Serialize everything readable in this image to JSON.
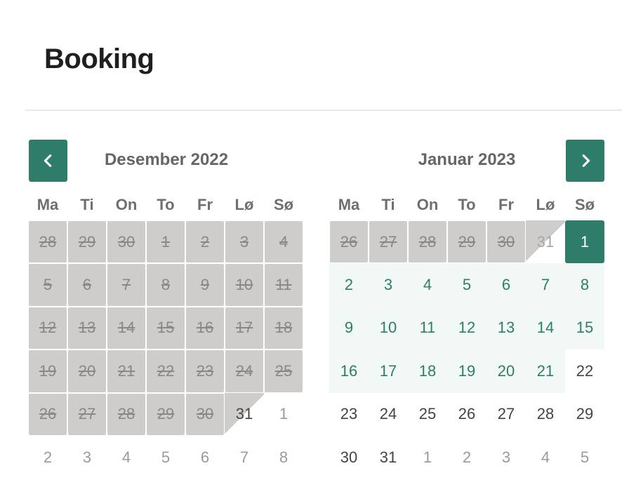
{
  "page": {
    "title": "Booking"
  },
  "nav": {
    "prev_icon": "chevron-left-icon",
    "next_icon": "chevron-right-icon"
  },
  "weekdays": [
    "Ma",
    "Ti",
    "On",
    "To",
    "Fr",
    "Lø",
    "Sø"
  ],
  "months": [
    {
      "title": "Desember 2022",
      "days": [
        {
          "d": "28",
          "s": "blocked"
        },
        {
          "d": "29",
          "s": "blocked"
        },
        {
          "d": "30",
          "s": "blocked"
        },
        {
          "d": "1",
          "s": "blocked"
        },
        {
          "d": "2",
          "s": "blocked"
        },
        {
          "d": "3",
          "s": "blocked"
        },
        {
          "d": "4",
          "s": "blocked"
        },
        {
          "d": "5",
          "s": "blocked"
        },
        {
          "d": "6",
          "s": "blocked"
        },
        {
          "d": "7",
          "s": "blocked"
        },
        {
          "d": "8",
          "s": "blocked"
        },
        {
          "d": "9",
          "s": "blocked"
        },
        {
          "d": "10",
          "s": "blocked"
        },
        {
          "d": "11",
          "s": "blocked"
        },
        {
          "d": "12",
          "s": "blocked"
        },
        {
          "d": "13",
          "s": "blocked"
        },
        {
          "d": "14",
          "s": "blocked"
        },
        {
          "d": "15",
          "s": "blocked"
        },
        {
          "d": "16",
          "s": "blocked"
        },
        {
          "d": "17",
          "s": "blocked"
        },
        {
          "d": "18",
          "s": "blocked"
        },
        {
          "d": "19",
          "s": "blocked"
        },
        {
          "d": "20",
          "s": "blocked"
        },
        {
          "d": "21",
          "s": "blocked"
        },
        {
          "d": "22",
          "s": "blocked"
        },
        {
          "d": "23",
          "s": "blocked"
        },
        {
          "d": "24",
          "s": "blocked"
        },
        {
          "d": "25",
          "s": "blocked"
        },
        {
          "d": "26",
          "s": "blocked"
        },
        {
          "d": "27",
          "s": "blocked"
        },
        {
          "d": "28",
          "s": "blocked"
        },
        {
          "d": "29",
          "s": "blocked"
        },
        {
          "d": "30",
          "s": "blocked"
        },
        {
          "d": "31",
          "s": "split"
        },
        {
          "d": "1",
          "s": "outside"
        },
        {
          "d": "2",
          "s": "outside"
        },
        {
          "d": "3",
          "s": "outside"
        },
        {
          "d": "4",
          "s": "outside"
        },
        {
          "d": "5",
          "s": "outside"
        },
        {
          "d": "6",
          "s": "outside"
        },
        {
          "d": "7",
          "s": "outside"
        },
        {
          "d": "8",
          "s": "outside"
        }
      ]
    },
    {
      "title": "Januar 2023",
      "days": [
        {
          "d": "26",
          "s": "blocked"
        },
        {
          "d": "27",
          "s": "blocked"
        },
        {
          "d": "28",
          "s": "blocked"
        },
        {
          "d": "29",
          "s": "blocked"
        },
        {
          "d": "30",
          "s": "blocked"
        },
        {
          "d": "31",
          "s": "split-light"
        },
        {
          "d": "1",
          "s": "selected"
        },
        {
          "d": "2",
          "s": "available"
        },
        {
          "d": "3",
          "s": "available"
        },
        {
          "d": "4",
          "s": "available"
        },
        {
          "d": "5",
          "s": "available"
        },
        {
          "d": "6",
          "s": "available"
        },
        {
          "d": "7",
          "s": "available"
        },
        {
          "d": "8",
          "s": "available"
        },
        {
          "d": "9",
          "s": "available"
        },
        {
          "d": "10",
          "s": "available"
        },
        {
          "d": "11",
          "s": "available"
        },
        {
          "d": "12",
          "s": "available"
        },
        {
          "d": "13",
          "s": "available"
        },
        {
          "d": "14",
          "s": "available"
        },
        {
          "d": "15",
          "s": "available"
        },
        {
          "d": "16",
          "s": "available"
        },
        {
          "d": "17",
          "s": "available"
        },
        {
          "d": "18",
          "s": "available"
        },
        {
          "d": "19",
          "s": "available"
        },
        {
          "d": "20",
          "s": "available"
        },
        {
          "d": "21",
          "s": "available"
        },
        {
          "d": "22",
          "s": "normal"
        },
        {
          "d": "23",
          "s": "normal"
        },
        {
          "d": "24",
          "s": "normal"
        },
        {
          "d": "25",
          "s": "normal"
        },
        {
          "d": "26",
          "s": "normal"
        },
        {
          "d": "27",
          "s": "normal"
        },
        {
          "d": "28",
          "s": "normal"
        },
        {
          "d": "29",
          "s": "normal"
        },
        {
          "d": "30",
          "s": "normal"
        },
        {
          "d": "31",
          "s": "normal"
        },
        {
          "d": "1",
          "s": "outside"
        },
        {
          "d": "2",
          "s": "outside"
        },
        {
          "d": "3",
          "s": "outside"
        },
        {
          "d": "4",
          "s": "outside"
        },
        {
          "d": "5",
          "s": "outside"
        }
      ]
    }
  ],
  "colors": {
    "accent": "#2e7d6b",
    "blocked": "#cfcccc",
    "available_bg": "#f1f8f5"
  }
}
